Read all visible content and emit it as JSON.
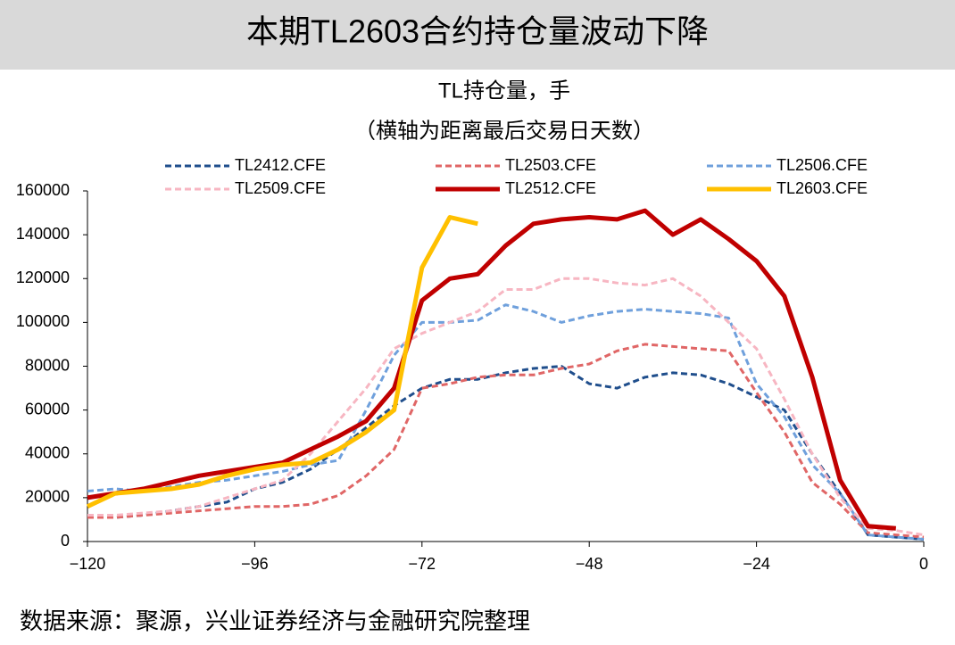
{
  "header": {
    "title": "本期TL2603合约持仓量波动下降"
  },
  "chart_data": {
    "type": "line",
    "title": "TL持仓量，手",
    "subtitle": "（横轴为距离最后交易日天数）",
    "source": "数据来源：聚源，兴业证券经济与金融研究院整理",
    "x": [
      -120,
      -116,
      -112,
      -108,
      -104,
      -100,
      -96,
      -92,
      -88,
      -84,
      -80,
      -76,
      -72,
      -68,
      -64,
      -60,
      -56,
      -52,
      -48,
      -44,
      -40,
      -36,
      -32,
      -28,
      -24,
      -20,
      -16,
      -12,
      -8,
      -4,
      0
    ],
    "series": [
      {
        "name": "TL2412.CFE",
        "color": "#1f4e8c",
        "dashed": true,
        "values": [
          11000,
          11000,
          12000,
          14000,
          16000,
          18000,
          24000,
          27000,
          33000,
          42000,
          52000,
          62000,
          70000,
          74000,
          74000,
          77000,
          79000,
          80000,
          72000,
          70000,
          75000,
          77000,
          76000,
          72000,
          66000,
          60000,
          40000,
          22000,
          3000,
          2000,
          1000
        ]
      },
      {
        "name": "TL2503.CFE",
        "color": "#e06666",
        "dashed": true,
        "values": [
          11000,
          11000,
          12000,
          13000,
          14000,
          15000,
          16000,
          16000,
          17000,
          21000,
          30000,
          42000,
          70000,
          72000,
          75000,
          76000,
          76000,
          79000,
          81000,
          87000,
          90000,
          89000,
          88000,
          87000,
          68000,
          50000,
          27000,
          17000,
          4000,
          3000,
          2000
        ]
      },
      {
        "name": "TL2506.CFE",
        "color": "#6fa0dc",
        "dashed": true,
        "values": [
          23000,
          24000,
          23000,
          25000,
          27000,
          28000,
          30000,
          32000,
          35000,
          37000,
          60000,
          85000,
          100000,
          100000,
          101000,
          108000,
          105000,
          100000,
          103000,
          105000,
          106000,
          105000,
          104000,
          102000,
          72000,
          57000,
          35000,
          22000,
          3000,
          2000,
          1000
        ]
      },
      {
        "name": "TL2509.CFE",
        "color": "#f7b6c2",
        "dashed": true,
        "values": [
          12000,
          12000,
          13000,
          14000,
          16000,
          20000,
          24000,
          28000,
          40000,
          55000,
          70000,
          88000,
          95000,
          100000,
          105000,
          115000,
          115000,
          120000,
          120000,
          118000,
          117000,
          120000,
          112000,
          100000,
          88000,
          65000,
          40000,
          20000,
          6000,
          5000,
          3000
        ]
      },
      {
        "name": "TL2512.CFE",
        "color": "#c00000",
        "dashed": false,
        "values": [
          20000,
          22000,
          24000,
          27000,
          30000,
          32000,
          34000,
          36000,
          42000,
          48000,
          55000,
          70000,
          110000,
          120000,
          122000,
          135000,
          145000,
          147000,
          148000,
          147000,
          151000,
          140000,
          147000,
          138000,
          128000,
          112000,
          75000,
          28000,
          7000,
          6000,
          null
        ]
      },
      {
        "name": "TL2603.CFE",
        "color": "#ffc000",
        "dashed": false,
        "values": [
          16000,
          22000,
          23000,
          24000,
          26000,
          30000,
          33000,
          35000,
          36000,
          42000,
          50000,
          60000,
          125000,
          148000,
          145000,
          null,
          null,
          null,
          null,
          null,
          null,
          null,
          null,
          null,
          null,
          null,
          null,
          null,
          null,
          null,
          null
        ]
      }
    ],
    "xlim": [
      -120,
      0
    ],
    "xticks": [
      {
        "value": -120,
        "label": "−120"
      },
      {
        "value": -96,
        "label": "−96"
      },
      {
        "value": -72,
        "label": "−72"
      },
      {
        "value": -48,
        "label": "−48"
      },
      {
        "value": -24,
        "label": "−24"
      },
      0
    ],
    "ylim": [
      0,
      160000
    ],
    "yticks": [
      0,
      20000,
      40000,
      60000,
      80000,
      100000,
      120000,
      140000,
      160000
    ]
  }
}
